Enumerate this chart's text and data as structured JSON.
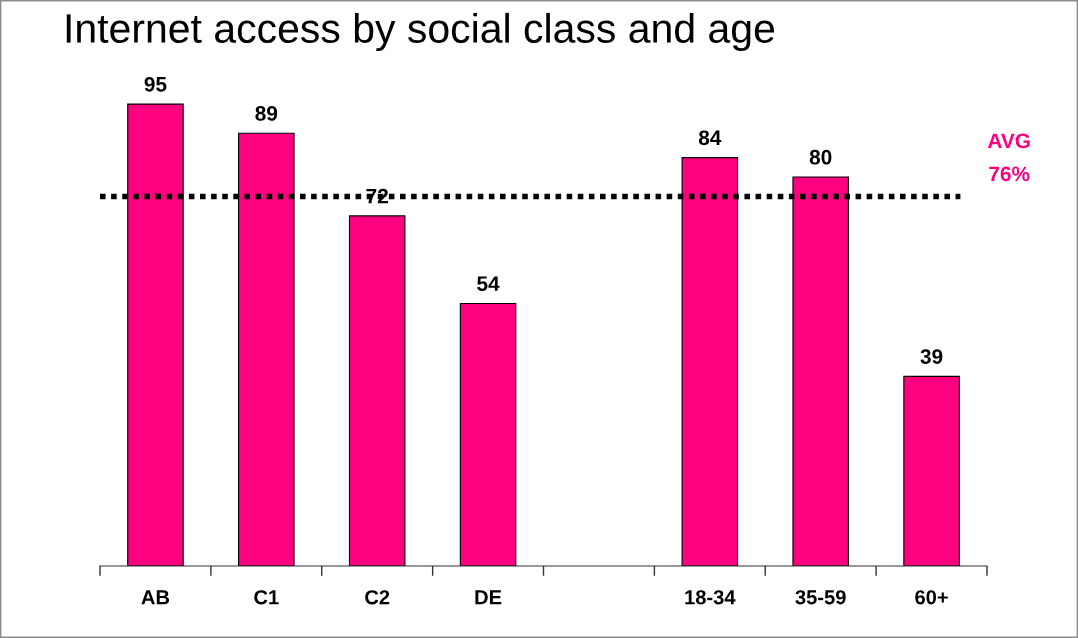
{
  "chart_data": {
    "type": "bar",
    "title": "Internet access by social class and age",
    "categories": [
      "AB",
      "C1",
      "C2",
      "DE",
      null,
      "18-34",
      "35-59",
      "60+"
    ],
    "values": [
      95,
      89,
      72,
      54,
      null,
      84,
      80,
      39
    ],
    "color": "#ff0080",
    "data_labels": true,
    "tick_labels": "x",
    "ref_lines": [
      {
        "axis": "y",
        "value": 76,
        "label": "AVG\n76%",
        "color": "#000000",
        "line_style": "dotted"
      }
    ]
  }
}
